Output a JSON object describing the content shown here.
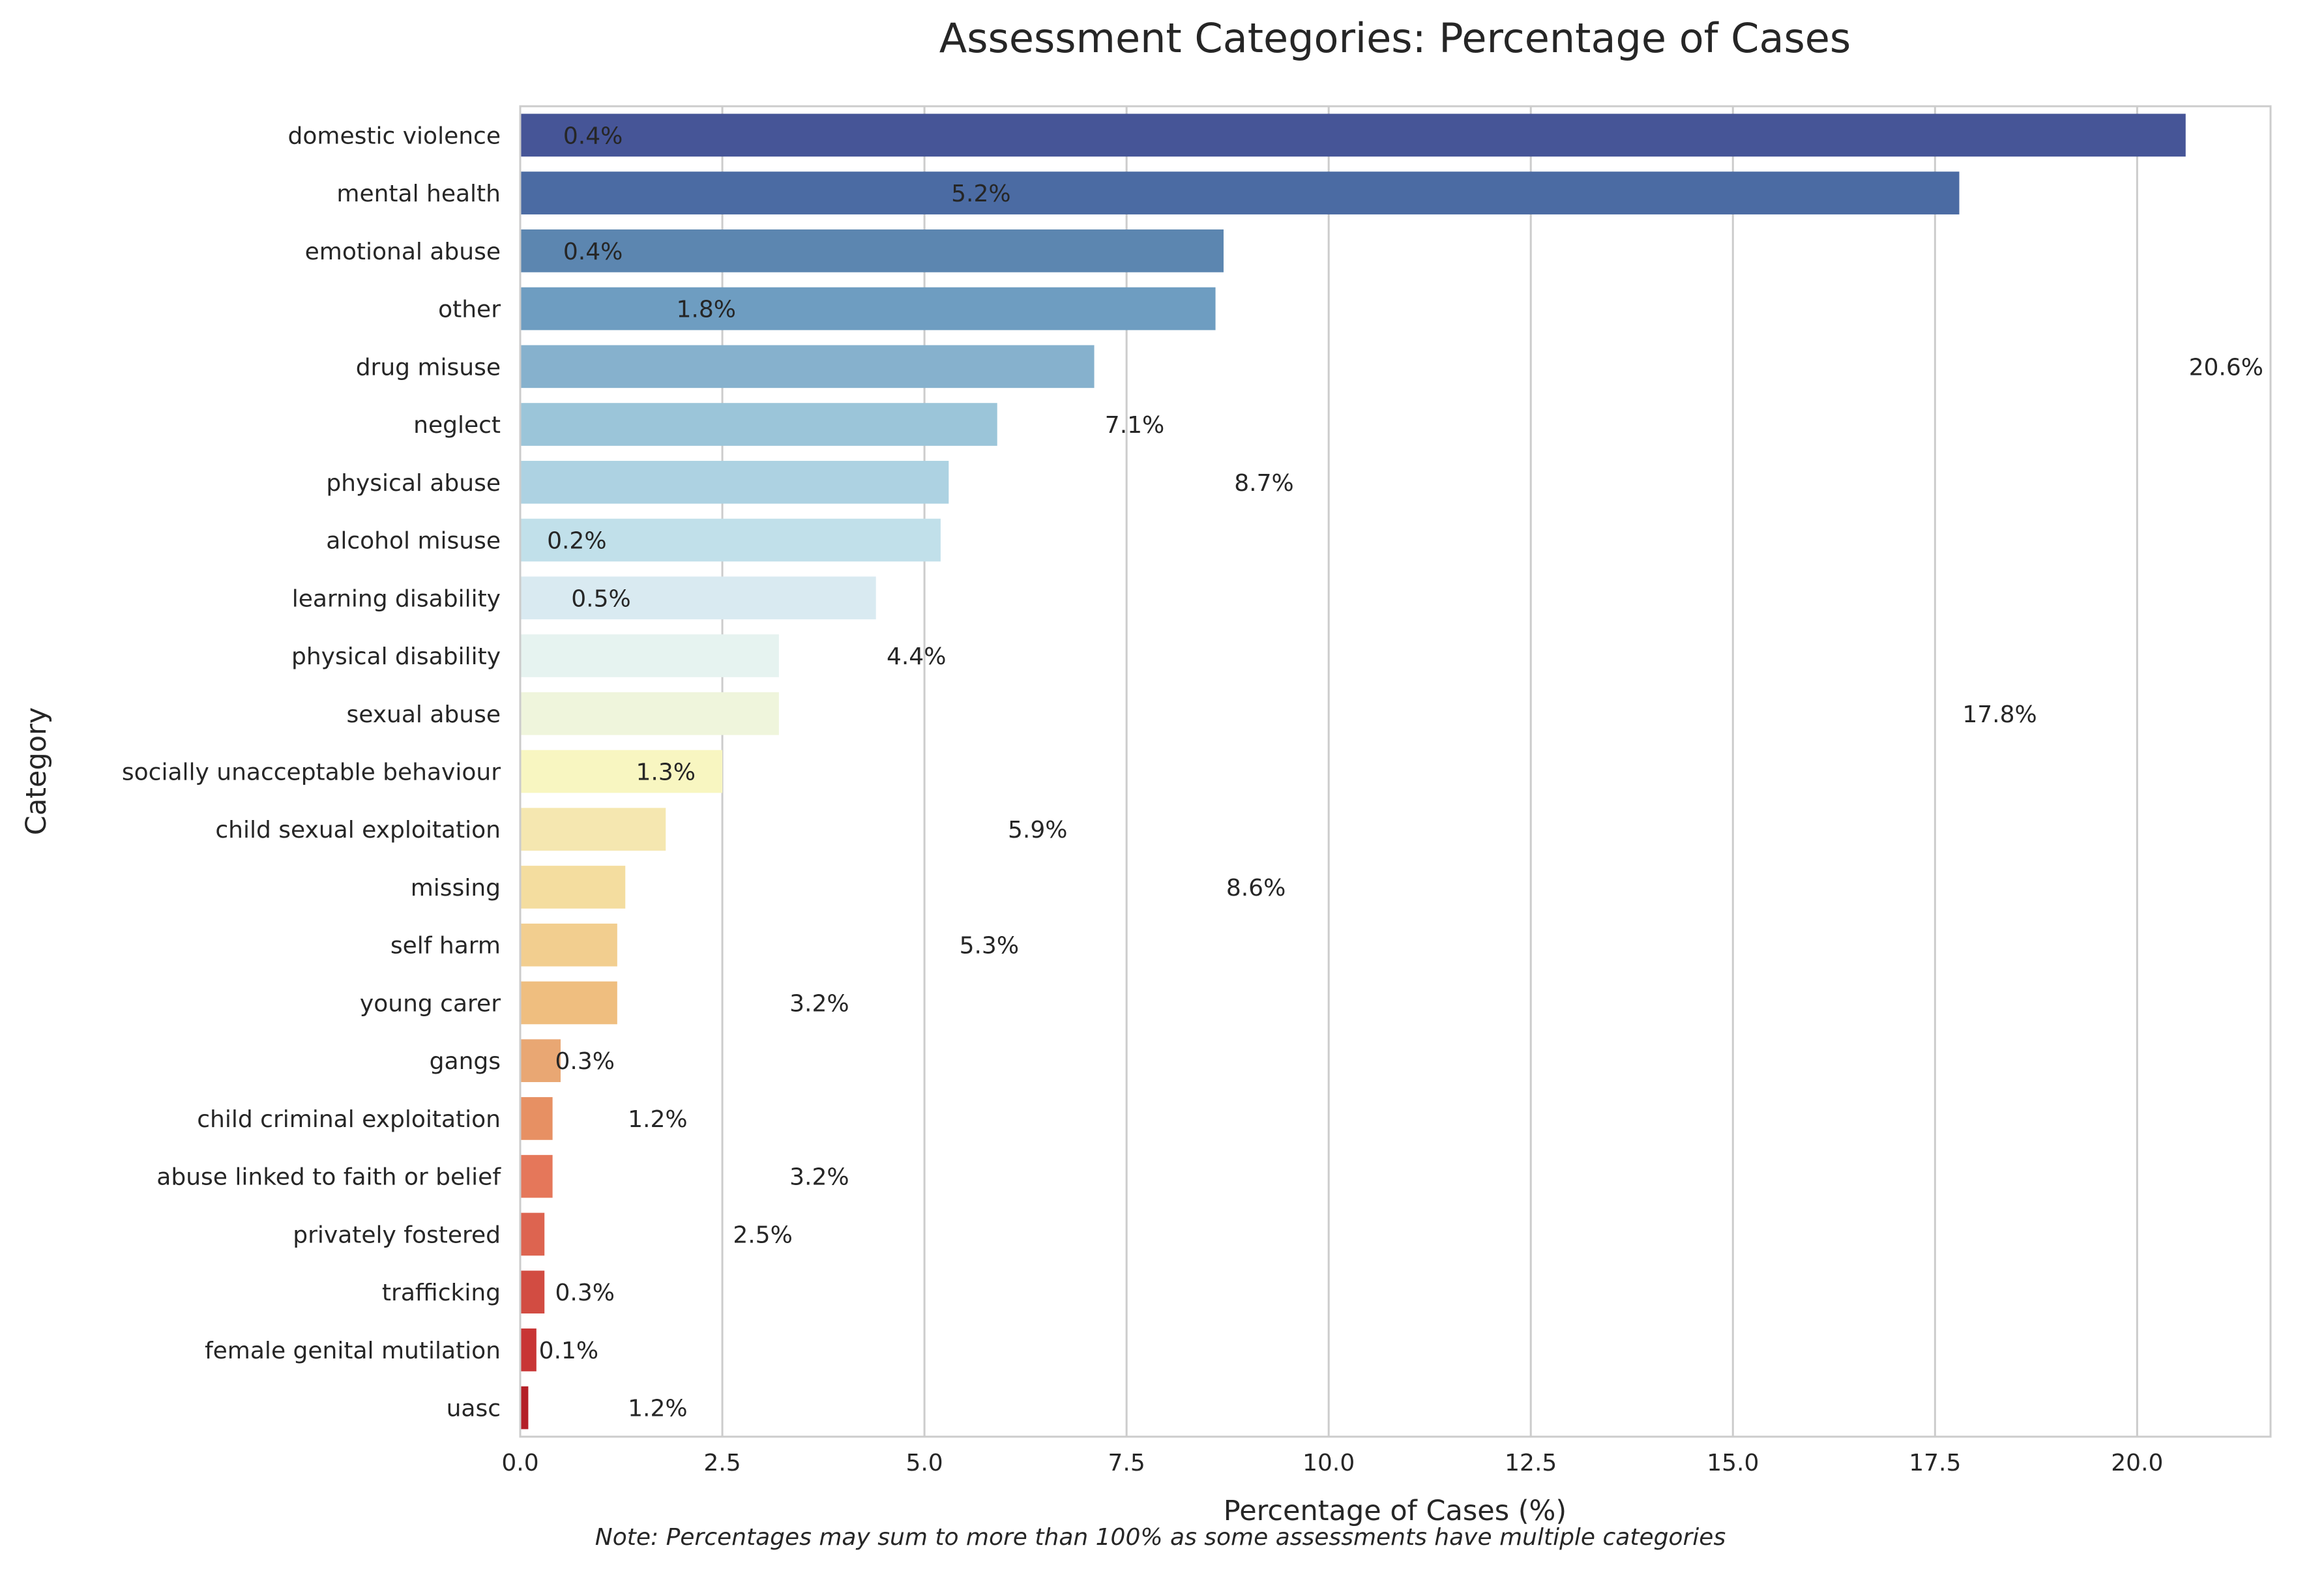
{
  "chart_data": {
    "type": "bar",
    "orientation": "horizontal",
    "title": "Assessment Categories: Percentage of Cases",
    "xlabel": "Percentage of Cases (%)",
    "ylabel": "Category",
    "xlim": [
      0,
      21.65
    ],
    "x_ticks": [
      "0.0",
      "2.5",
      "5.0",
      "7.5",
      "10.0",
      "12.5",
      "15.0",
      "17.5",
      "20.0"
    ],
    "grid": "vertical",
    "categories": [
      "domestic violence",
      "mental health",
      "emotional abuse",
      "other",
      "drug misuse",
      "neglect",
      "physical abuse",
      "alcohol misuse",
      "learning disability",
      "physical disability",
      "sexual abuse",
      "socially unacceptable behaviour",
      "child sexual exploitation",
      "missing",
      "self harm",
      "young carer",
      "gangs",
      "child criminal exploitation",
      "abuse linked to faith or belief",
      "privately fostered",
      "trafficking",
      "female genital mutilation",
      "uasc"
    ],
    "values": [
      20.6,
      17.8,
      8.7,
      8.6,
      7.1,
      5.9,
      5.3,
      5.2,
      4.4,
      3.2,
      3.2,
      2.5,
      1.8,
      1.3,
      1.2,
      1.2,
      0.5,
      0.4,
      0.4,
      0.3,
      0.3,
      0.2,
      0.1
    ],
    "colors": [
      "#465597",
      "#4b6ba3",
      "#5c86b0",
      "#6e9dc1",
      "#86b1cd",
      "#9bc5d9",
      "#add2e2",
      "#c1e0ea",
      "#d9eaf1",
      "#e6f3f0",
      "#eff5dc",
      "#f8f6c1",
      "#f5e7b0",
      "#f4dd9f",
      "#f2ce8f",
      "#efbe7f",
      "#e9a773",
      "#e79063",
      "#e5775a",
      "#dd6450",
      "#d24c42",
      "#c83535",
      "#b41f27"
    ],
    "annotations": [
      {
        "text": "0.4%",
        "x": 0.9,
        "row": 0
      },
      {
        "text": "5.2%",
        "x": 5.7,
        "row": 1
      },
      {
        "text": "0.4%",
        "x": 0.9,
        "row": 2
      },
      {
        "text": "1.8%",
        "x": 2.3,
        "row": 3
      },
      {
        "text": "20.6%",
        "x": 21.1,
        "row": 4
      },
      {
        "text": "7.1%",
        "x": 7.6,
        "row": 5
      },
      {
        "text": "8.7%",
        "x": 9.2,
        "row": 6
      },
      {
        "text": "0.2%",
        "x": 0.7,
        "row": 7
      },
      {
        "text": "0.5%",
        "x": 1.0,
        "row": 8
      },
      {
        "text": "4.4%",
        "x": 4.9,
        "row": 9
      },
      {
        "text": "17.8%",
        "x": 18.3,
        "row": 10
      },
      {
        "text": "1.3%",
        "x": 1.8,
        "row": 11
      },
      {
        "text": "5.9%",
        "x": 6.4,
        "row": 12
      },
      {
        "text": "8.6%",
        "x": 9.1,
        "row": 13
      },
      {
        "text": "5.3%",
        "x": 5.8,
        "row": 14
      },
      {
        "text": "3.2%",
        "x": 3.7,
        "row": 15
      },
      {
        "text": "0.3%",
        "x": 0.8,
        "row": 16
      },
      {
        "text": "1.2%",
        "x": 1.7,
        "row": 17
      },
      {
        "text": "3.2%",
        "x": 3.7,
        "row": 18
      },
      {
        "text": "2.5%",
        "x": 3.0,
        "row": 19
      },
      {
        "text": "0.3%",
        "x": 0.8,
        "row": 20
      },
      {
        "text": "0.1%",
        "x": 0.6,
        "row": 21
      },
      {
        "text": "1.2%",
        "x": 1.7,
        "row": 22
      }
    ],
    "note": "Note: Percentages may sum to more than 100% as some assessments have multiple categories"
  },
  "colors": {
    "grid": "#cccccc",
    "spine": "#cccccc",
    "text": "#262626",
    "background": "#ffffff"
  }
}
